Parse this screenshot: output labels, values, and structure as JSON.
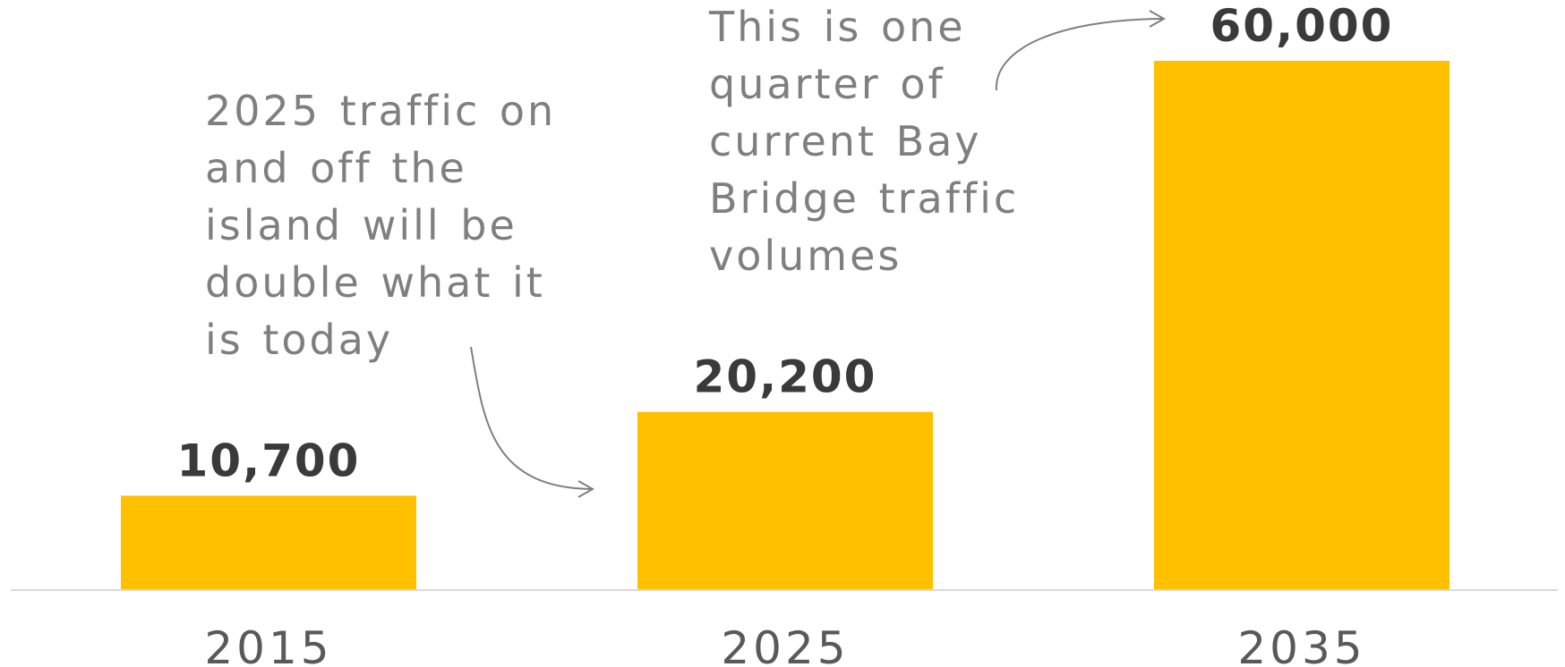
{
  "chart_data": {
    "type": "bar",
    "categories": [
      "2015",
      "2025",
      "2035"
    ],
    "values": [
      10700,
      20200,
      60000
    ],
    "value_labels": [
      "10,700",
      "20,200",
      "60,000"
    ],
    "title": "",
    "xlabel": "",
    "ylabel": "",
    "ylim": [
      0,
      60000
    ],
    "grid": false,
    "legend": "none",
    "annotations": [
      {
        "target": "2025",
        "text": "2025 traffic on\nand off the\nisland will be\ndouble what it\nis today"
      },
      {
        "target": "2035",
        "text": "This is one\nquarter of\ncurrent Bay\nBridge traffic\nvolumes"
      }
    ]
  },
  "colors": {
    "bar": "#FFC000",
    "value_text": "#3a3a3a",
    "axis_text": "#595959",
    "annotation_text": "#7f7f7f",
    "baseline": "#d9d9d9",
    "arrow": "#7f7f7f"
  }
}
